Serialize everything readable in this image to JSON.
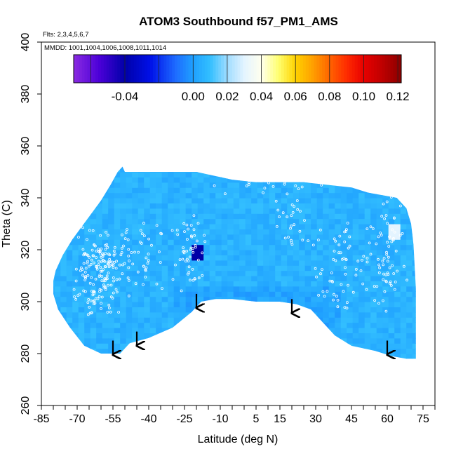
{
  "chart_data": {
    "type": "heatmap",
    "title": "ATOM3 Southbound f57_PM1_AMS",
    "subtitle_flights": "Flts: 2,3,4,5,6,7",
    "subtitle_dates": "MMDD: 1001,1004,1006,1008,1011,1014",
    "xlabel": "Latitude (deg N)",
    "ylabel": "Theta (C)",
    "xlim": [
      -85,
      80
    ],
    "ylim": [
      260,
      400
    ],
    "xticks": [
      -85,
      -70,
      -55,
      -40,
      -25,
      -10,
      5,
      15,
      30,
      45,
      60,
      75
    ],
    "yticks": [
      260,
      280,
      300,
      320,
      340,
      360,
      380,
      400
    ],
    "colorbar": {
      "range": [
        -0.07,
        0.122
      ],
      "ticks": [
        -0.04,
        0.0,
        0.02,
        0.04,
        0.06,
        0.08,
        0.1,
        0.12
      ],
      "stops": [
        {
          "v": -0.07,
          "c": "#8a2be2"
        },
        {
          "v": -0.055,
          "c": "#4b00d8"
        },
        {
          "v": -0.04,
          "c": "#0000a8"
        },
        {
          "v": -0.025,
          "c": "#0010e8"
        },
        {
          "v": -0.01,
          "c": "#1e6dff"
        },
        {
          "v": 0.0,
          "c": "#1fa0ff"
        },
        {
          "v": 0.01,
          "c": "#33bfff"
        },
        {
          "v": 0.02,
          "c": "#9fdcff"
        },
        {
          "v": 0.03,
          "c": "#e4f4ff"
        },
        {
          "v": 0.04,
          "c": "#ffffee"
        },
        {
          "v": 0.05,
          "c": "#ffff70"
        },
        {
          "v": 0.06,
          "c": "#ffd200"
        },
        {
          "v": 0.07,
          "c": "#ffa000"
        },
        {
          "v": 0.08,
          "c": "#ff6400"
        },
        {
          "v": 0.09,
          "c": "#ff2c00"
        },
        {
          "v": 0.1,
          "c": "#e80000"
        },
        {
          "v": 0.11,
          "c": "#c20000"
        },
        {
          "v": 0.122,
          "c": "#8b0000"
        }
      ]
    },
    "field_typical_value": 0.006,
    "field_min_feature": {
      "lat": -20,
      "theta": 318,
      "value": -0.04
    },
    "field_max_feature": {
      "lat": 61,
      "theta": 326,
      "value": 0.03
    },
    "arrows": [
      {
        "lat": -55,
        "theta": 285
      },
      {
        "lat": -45,
        "theta": 288.5
      },
      {
        "lat": -20,
        "theta": 303
      },
      {
        "lat": 20,
        "theta": 301
      },
      {
        "lat": 60,
        "theta": 285
      }
    ],
    "coverage_boundary": [
      [
        -80,
        308
      ],
      [
        -79,
        312
      ],
      [
        -76,
        318
      ],
      [
        -72,
        324
      ],
      [
        -68,
        329
      ],
      [
        -64,
        334
      ],
      [
        -60,
        339
      ],
      [
        -56,
        345
      ],
      [
        -53,
        350
      ],
      [
        -51,
        352
      ],
      [
        -50,
        350
      ],
      [
        -40,
        350
      ],
      [
        -30,
        350
      ],
      [
        -20,
        350
      ],
      [
        -15,
        349
      ],
      [
        -5,
        347
      ],
      [
        5,
        346
      ],
      [
        15,
        346
      ],
      [
        25,
        346
      ],
      [
        35,
        345
      ],
      [
        45,
        344
      ],
      [
        52,
        342
      ],
      [
        58,
        341
      ],
      [
        64,
        340
      ],
      [
        68,
        336
      ],
      [
        70,
        330
      ],
      [
        71,
        322
      ],
      [
        72,
        305
      ],
      [
        72,
        278
      ],
      [
        68,
        278
      ],
      [
        62,
        279
      ],
      [
        55,
        281
      ],
      [
        45,
        283
      ],
      [
        38,
        287
      ],
      [
        33,
        292
      ],
      [
        28,
        297
      ],
      [
        22,
        299
      ],
      [
        15,
        300
      ],
      [
        5,
        300
      ],
      [
        -5,
        301
      ],
      [
        -12,
        301
      ],
      [
        -18,
        300
      ],
      [
        -22,
        296
      ],
      [
        -30,
        290
      ],
      [
        -40,
        286
      ],
      [
        -48,
        284
      ],
      [
        -52,
        280
      ],
      [
        -60,
        280
      ],
      [
        -67,
        283
      ],
      [
        -73,
        290
      ],
      [
        -78,
        297
      ],
      [
        -80,
        303
      ]
    ],
    "grid": false,
    "legend": "none"
  }
}
